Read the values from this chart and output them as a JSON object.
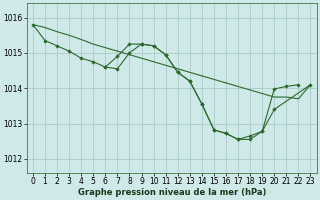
{
  "background_color": "#cfe8e8",
  "grid_color": "#aacccc",
  "line_color": "#2d6a2d",
  "marker_color": "#2d6a2d",
  "title": "Graphe pression niveau de la mer (hPa)",
  "xlim": [
    -0.5,
    23.5
  ],
  "ylim": [
    1011.6,
    1016.4
  ],
  "yticks": [
    1012,
    1013,
    1014,
    1015,
    1016
  ],
  "xticks": [
    0,
    1,
    2,
    3,
    4,
    5,
    6,
    7,
    8,
    9,
    10,
    11,
    12,
    13,
    14,
    15,
    16,
    17,
    18,
    19,
    20,
    21,
    22,
    23
  ],
  "series": [
    {
      "x": [
        0,
        1,
        2,
        3,
        4,
        5,
        6,
        7,
        8,
        9,
        10,
        11,
        12,
        13,
        14,
        15,
        16,
        17,
        18,
        19,
        20,
        21,
        22,
        23
      ],
      "y": [
        1015.8,
        1015.72,
        1015.6,
        1015.5,
        1015.38,
        1015.25,
        1015.15,
        1015.05,
        1014.95,
        1014.85,
        1014.75,
        1014.65,
        1014.55,
        1014.45,
        1014.35,
        1014.25,
        1014.15,
        1014.05,
        1013.95,
        1013.85,
        1013.75,
        1013.75,
        1013.7,
        1014.1
      ],
      "has_markers": false
    },
    {
      "x": [
        0,
        1,
        2,
        3,
        4,
        5,
        6,
        7,
        8,
        9,
        10,
        11,
        12,
        13,
        14,
        15,
        16,
        17,
        18,
        19,
        20,
        21,
        22
      ],
      "y": [
        1015.8,
        1015.35,
        1015.2,
        1015.05,
        1014.85,
        1014.75,
        1014.6,
        1014.9,
        1015.25,
        1015.25,
        1015.2,
        1014.95,
        1014.45,
        1014.2,
        1013.55,
        1012.82,
        1012.72,
        1012.55,
        1012.55,
        1012.78,
        1013.98,
        1014.05,
        1014.1
      ],
      "has_markers": true
    },
    {
      "x": [
        6,
        7,
        8,
        9,
        10,
        11,
        12,
        13,
        14,
        15,
        16,
        17,
        18,
        19,
        20,
        23
      ],
      "y": [
        1014.6,
        1014.55,
        1015.0,
        1015.25,
        1015.2,
        1014.95,
        1014.45,
        1014.2,
        1013.55,
        1012.82,
        1012.72,
        1012.55,
        1012.65,
        1012.78,
        1013.4,
        1014.1
      ],
      "has_markers": true
    }
  ]
}
